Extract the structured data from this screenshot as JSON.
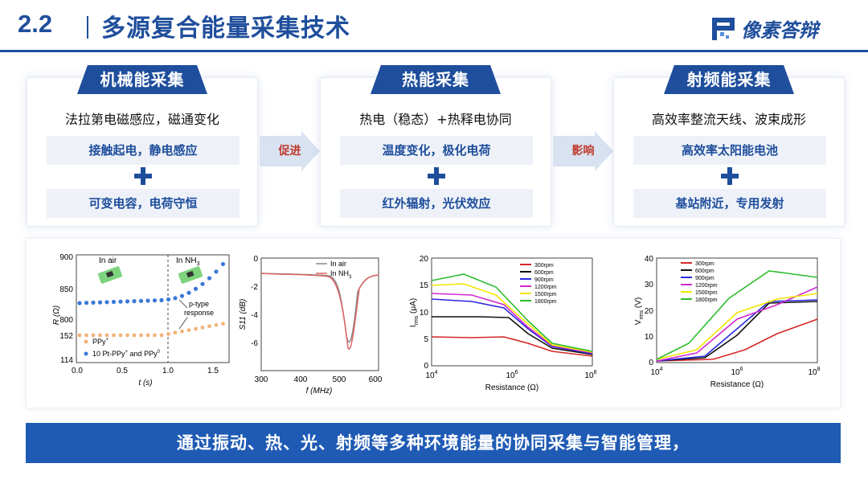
{
  "header": {
    "section_no": "2.2",
    "title": "多源复合能量采集技术",
    "logo_text": "像素答辩",
    "logo_icon": "pixel-p-logo-icon",
    "accent_color": "#1f4e9c"
  },
  "cards": [
    {
      "tab": "机械能采集",
      "subtitle": "法拉第电磁感应，磁通变化",
      "box1": "接触起电，静电感应",
      "box2": "可变电容，电荷守恒"
    },
    {
      "tab": "热能采集",
      "subtitle": "热电（稳态）+热释电协同",
      "box1": "温度变化，极化电荷",
      "box2": "红外辐射，光伏效应"
    },
    {
      "tab": "射频能采集",
      "subtitle": "高效率整流天线、波束成形",
      "box1": "高效率太阳能电池",
      "box2": "基站附近，专用发射"
    }
  ],
  "arrows": [
    {
      "label": "促进",
      "icon": "right-arrow-icon"
    },
    {
      "label": "影响",
      "icon": "right-arrow-icon"
    }
  ],
  "figures": {
    "fig1": {
      "label_in_air": "In air",
      "label_in_nh3": "In NH",
      "label_in_nh3_sub": "3",
      "annotation_line1": "p-type",
      "annotation_line2": "response",
      "ylabel": "R (Ω)",
      "xlabel": "t (s)",
      "yticks": [
        "900",
        "850",
        "800",
        "152",
        "114"
      ],
      "xticks": [
        "0.0",
        "0.5",
        "1.0",
        "1.5"
      ],
      "legend1": "PPy",
      "legend1_sup": "+",
      "legend2": "10 Pt-PPy",
      "legend2_sup": "+",
      "legend2_tail": " and PPy",
      "legend2_tail_sup": "0"
    },
    "fig2": {
      "legend1": "In air",
      "legend2": "In NH",
      "legend2_sub": "3",
      "ylabel": "S11 (dB)",
      "xlabel": "f (MHz)",
      "yticks": [
        "0",
        "-2",
        "-4",
        "-6"
      ],
      "xticks": [
        "300",
        "400",
        "500",
        "600"
      ]
    },
    "fig3": {
      "ylabel": "I",
      "ylabel_sub": "rms",
      "ylabel_unit": " (μA)",
      "xlabel": "Resistance (Ω)",
      "yticks": [
        "20",
        "15",
        "10",
        "5",
        "0"
      ],
      "xticks": [
        "10",
        "10",
        "10"
      ],
      "xtick_exps": [
        "4",
        "6",
        "8"
      ]
    },
    "fig4": {
      "ylabel": "V",
      "ylabel_sub": "rms",
      "ylabel_unit": " (V)",
      "xlabel": "Resistance (Ω)",
      "yticks": [
        "40",
        "30",
        "20",
        "10",
        "0"
      ],
      "xticks": [
        "10",
        "10",
        "10"
      ],
      "xtick_exps": [
        "4",
        "6",
        "8"
      ]
    },
    "rpm_legend": [
      {
        "name": "300rpm",
        "color": "#d62728"
      },
      {
        "name": "600rpm",
        "color": "#111111"
      },
      {
        "name": "900rpm",
        "color": "#2a2ae0"
      },
      {
        "name": "1200rpm",
        "color": "#d02ad0"
      },
      {
        "name": "1500rpm",
        "color": "#f2e600"
      },
      {
        "name": "1800rpm",
        "color": "#2ebd2e"
      }
    ]
  },
  "footer": {
    "text": "通过振动、热、光、射频等多种环境能量的协同采集与智能管理，"
  }
}
